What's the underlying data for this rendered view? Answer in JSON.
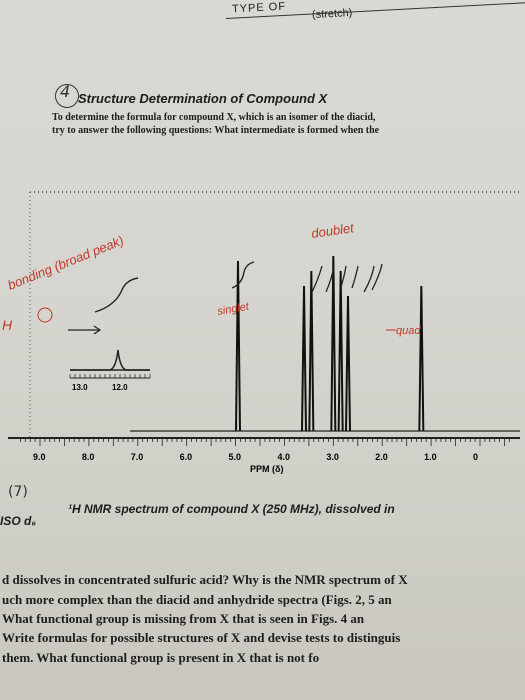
{
  "header": {
    "type_label": "TYPE OF",
    "stretch_note": "(stretch)"
  },
  "section": {
    "number": "4",
    "title": "Structure Determination of Compound X",
    "question_line1": "To determine the formula for compound X, which is an isomer of the diacid,",
    "question_line2": "try to answer the following questions: What intermediate is formed when the"
  },
  "spectrum": {
    "chart_data": {
      "type": "line",
      "title": "",
      "xlabel": "PPM (δ)",
      "x_ticks": [
        "9.0",
        "8.0",
        "7.0",
        "6.0",
        "5.0",
        "4.0",
        "3.0",
        "2.0",
        "1.0",
        "0"
      ],
      "inset_ticks": [
        "13.0",
        "12.0"
      ],
      "peaks": [
        {
          "ppm": 12.5,
          "label": "broad peak (inset)"
        },
        {
          "ppm": 4.95,
          "label": "singlet"
        },
        {
          "ppm": 3.6,
          "label": "doublet"
        },
        {
          "ppm": 3.45,
          "label": "doublet"
        },
        {
          "ppm": 3.0,
          "label": "quartet"
        },
        {
          "ppm": 2.85,
          "label": "quartet"
        },
        {
          "ppm": 2.7,
          "label": "quartet"
        },
        {
          "ppm": 1.2,
          "label": ""
        }
      ]
    },
    "annotations": {
      "bonding": "bonding (broad peak)",
      "singlet": "singlet",
      "doublet": "doublet",
      "quad": "quad",
      "h_mark": "H",
      "caption_number": "(7)"
    }
  },
  "caption": {
    "text": "¹H NMR spectrum of compound X (250 MHz), dissolved in",
    "text2": "ISO d₆"
  },
  "body": {
    "line1": "d dissolves in concentrated sulfuric acid? Why is the NMR spectrum of X",
    "line2": "uch more complex than the diacid and anhydride spectra (Figs. 2, 5 an",
    "line3": "What functional group is missing from X that is seen in Figs. 4 an",
    "line4": "Write formulas for possible structures of X and devise tests to distinguis",
    "line5": "them. What functional group is present in X that is not fo"
  }
}
